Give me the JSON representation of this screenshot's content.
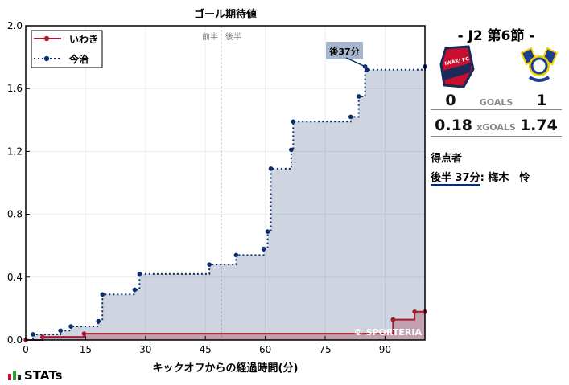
{
  "chart_data": {
    "type": "line",
    "title": "ゴール期待値",
    "xlabel": "キックオフからの経過時間(分)",
    "ylabel": "",
    "xlim": [
      0,
      100
    ],
    "ylim": [
      0,
      2.0
    ],
    "xticks": [
      0,
      15,
      30,
      45,
      60,
      75,
      90
    ],
    "yticks": [
      0.0,
      0.4,
      0.8,
      1.2,
      1.6,
      2.0
    ],
    "grid": true,
    "legend": "top-left",
    "halftime_labels": [
      "前半",
      "後半"
    ],
    "halftime_minute": 49,
    "series": [
      {
        "name": "いわき",
        "color": "#a6192e",
        "style": "solid step",
        "points": [
          [
            0,
            0
          ],
          [
            4.2,
            0.02
          ],
          [
            14.6,
            0.04
          ],
          [
            92,
            0.13
          ],
          [
            97.4,
            0.18
          ],
          [
            100,
            0.18
          ]
        ]
      },
      {
        "name": "今治",
        "color": "#0b2d6b",
        "style": "dotted step",
        "points": [
          [
            1.8,
            0.036
          ],
          [
            8.7,
            0.06
          ],
          [
            11.3,
            0.087
          ],
          [
            18.2,
            0.12
          ],
          [
            19.2,
            0.29
          ],
          [
            27.3,
            0.32
          ],
          [
            28.5,
            0.42
          ],
          [
            46,
            0.48
          ],
          [
            52.7,
            0.54
          ],
          [
            59.6,
            0.58
          ],
          [
            60.6,
            0.69
          ],
          [
            61.4,
            1.09
          ],
          [
            66.5,
            1.21
          ],
          [
            67,
            1.39
          ],
          [
            81.4,
            1.42
          ],
          [
            83.4,
            1.55
          ],
          [
            85,
            1.74
          ],
          [
            85.5,
            1.72
          ],
          [
            100,
            1.74
          ]
        ]
      }
    ],
    "annotations": [
      {
        "text": "後37分",
        "x": 85,
        "y": 1.74
      }
    ],
    "watermark": "© SPORTERIA"
  },
  "match": {
    "title": "-  J2 第6節  -",
    "home_goals": "0",
    "away_goals": "1",
    "goals_label": "GOALS",
    "home_xg": "0.18",
    "away_xg": "1.74",
    "xg_label": "xGOALS",
    "home_logo_text": "IWAKI FC"
  },
  "scorers": {
    "heading": "得点者",
    "items": [
      {
        "time": "後半 37分",
        "name": ": 梅木　怜"
      }
    ]
  },
  "brand": "STATs"
}
